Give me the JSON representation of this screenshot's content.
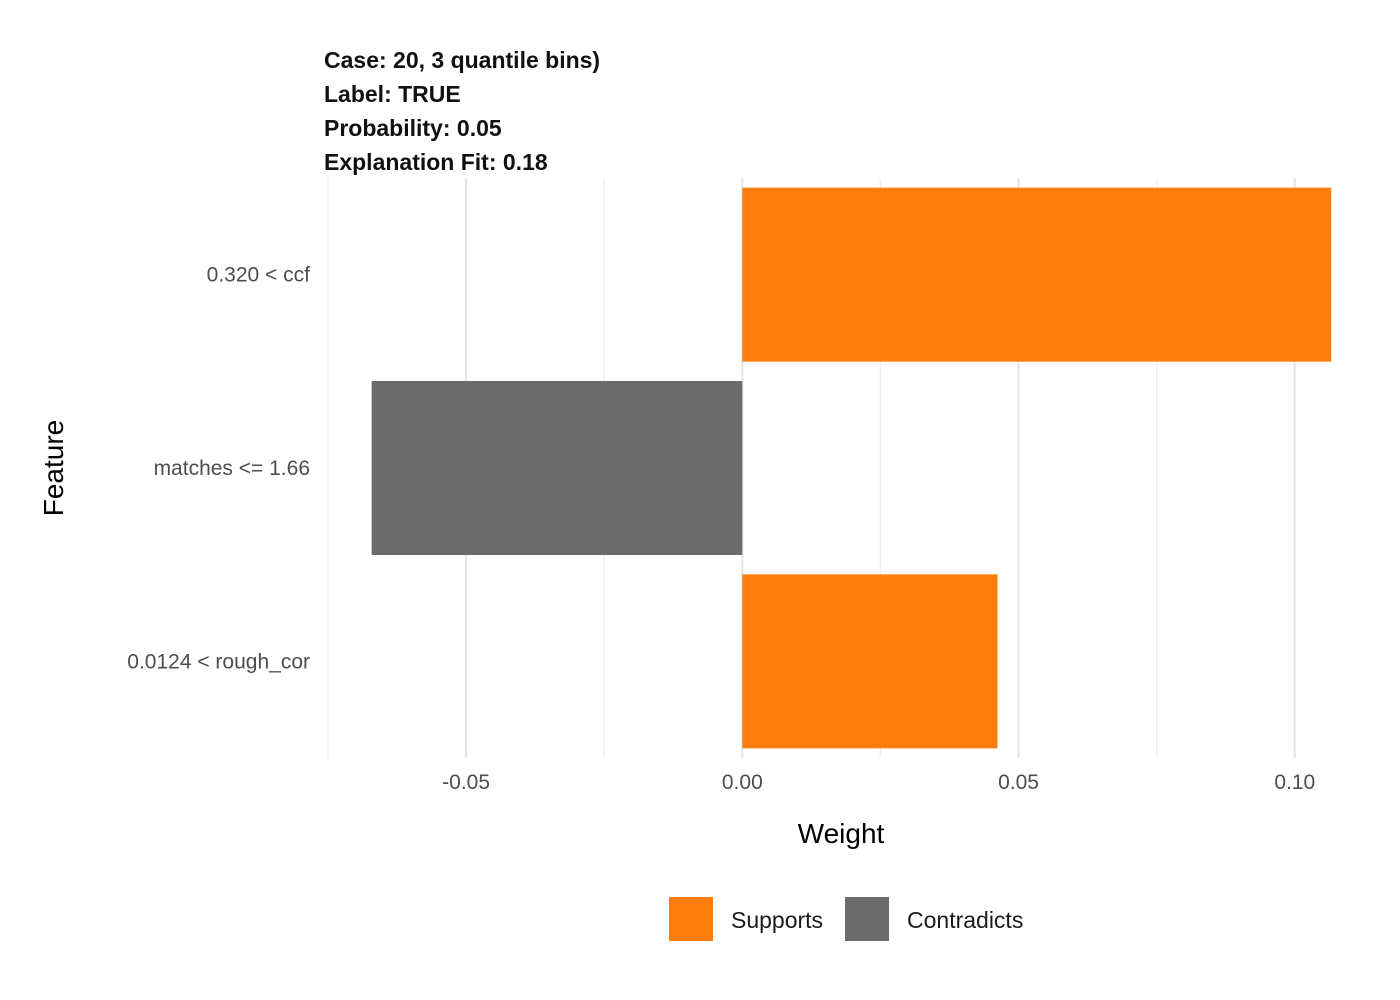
{
  "chart_data": {
    "type": "bar",
    "orientation": "horizontal",
    "title_lines": [
      "Case: 20, 3 quantile bins)",
      "Label: TRUE",
      "Probability: 0.05",
      "Explanation Fit: 0.18"
    ],
    "xlabel": "Weight",
    "ylabel": "Feature",
    "xlim": [
      -0.075,
      0.11
    ],
    "x_ticks": [
      -0.05,
      0.0,
      0.05,
      0.1
    ],
    "x_tick_labels": [
      "-0.05",
      "0.00",
      "0.05",
      "0.10"
    ],
    "x_minor_ticks": [
      -0.075,
      -0.025,
      0.025,
      0.075
    ],
    "categories": [
      "0.320 < ccf",
      "matches <= 1.66",
      "0.0124 < rough_cor"
    ],
    "values": [
      0.1066,
      -0.0671,
      0.0462
    ],
    "fill_groups": [
      "Supports",
      "Contradicts",
      "Supports"
    ],
    "legend": {
      "position": "bottom",
      "entries": [
        {
          "label": "Supports",
          "color": "#FC7D0B"
        },
        {
          "label": "Contradicts",
          "color": "#6C6C6C"
        }
      ]
    },
    "grid": true,
    "colors": {
      "Supports": "#FC7D0B",
      "Contradicts": "#6C6C6C"
    }
  }
}
